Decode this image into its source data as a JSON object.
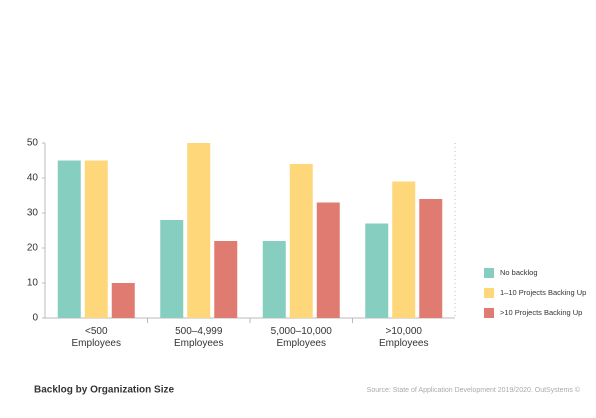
{
  "chart_data": {
    "type": "bar",
    "title": "Backlog by Organization Size",
    "source": "Source: State of Application Development 2019/2020. OutSystems ©",
    "categories": [
      "<500\nEmployees",
      "500–4,999\nEmployees",
      "5,000–10,000\nEmployees",
      ">10,000\nEmployees"
    ],
    "series": [
      {
        "name": "No backlog",
        "color": "#86cfc0",
        "values": [
          45,
          28,
          22,
          27
        ]
      },
      {
        "name": "1–10 Projects Backing Up",
        "color": "#fdd77a",
        "values": [
          45,
          50,
          44,
          39
        ]
      },
      {
        "name": ">10 Projects Backing Up",
        "color": "#e07b72",
        "values": [
          10,
          22,
          33,
          34
        ]
      }
    ],
    "ylim": [
      0,
      50
    ],
    "yticks": [
      0,
      10,
      20,
      30,
      40,
      50
    ],
    "legend": "right"
  }
}
